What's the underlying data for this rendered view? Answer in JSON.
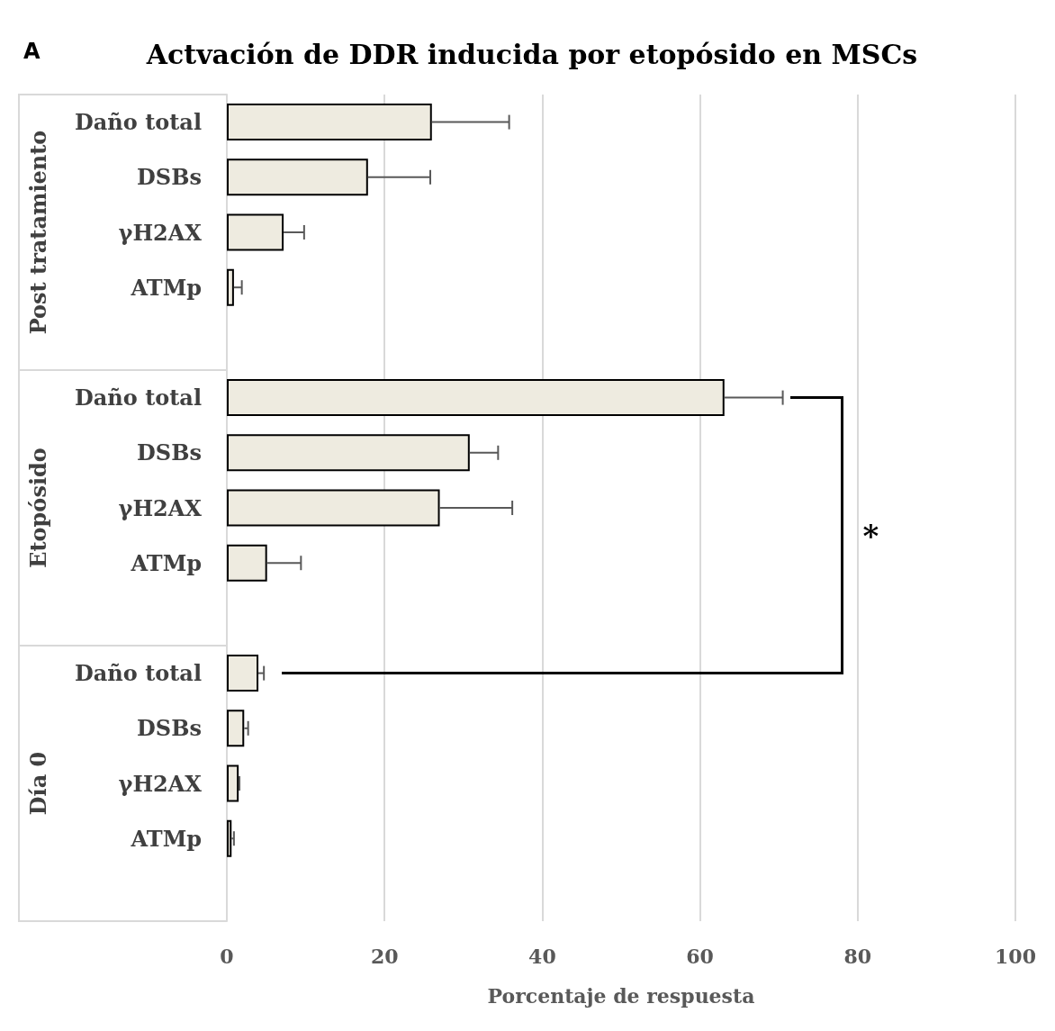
{
  "chart_data": {
    "type": "bar",
    "orientation": "horizontal",
    "title": "Actvación de DDR inducida por etopósido en MSCs",
    "xlabel": "Porcentaje de respuesta",
    "categories": [
      "Daño total",
      "DSBs",
      "γH2AX",
      "ATMp",
      null,
      "Daño total",
      "DSBs",
      "γH2AX",
      "ATMp",
      null,
      "Daño total",
      "DSBs",
      "γH2AX",
      "ATMp",
      null
    ],
    "values": [
      26.0,
      17.9,
      7.2,
      0.9,
      null,
      63.1,
      30.8,
      27.0,
      5.1,
      null,
      4.0,
      2.2,
      1.5,
      0.6,
      null
    ],
    "errors": [
      [
        26.0,
        35.8
      ],
      [
        17.9,
        25.8
      ],
      [
        7.2,
        9.8
      ],
      [
        0.9,
        1.9
      ],
      null,
      [
        63.1,
        70.5
      ],
      [
        30.8,
        34.4
      ],
      [
        27.0,
        36.2
      ],
      [
        5.1,
        9.4
      ],
      null,
      [
        4.0,
        4.7
      ],
      [
        2.2,
        2.7
      ],
      [
        1.5,
        1.6
      ],
      [
        0.6,
        0.9
      ],
      null
    ],
    "color": "#eeebe0",
    "xlim": [
      0,
      100
    ],
    "xticks": [
      0,
      20,
      40,
      60,
      80,
      100
    ],
    "grid": "x",
    "annotations": [
      "Post tratamiento",
      "Etopósido",
      "Día 0",
      "*",
      "A"
    ]
  }
}
